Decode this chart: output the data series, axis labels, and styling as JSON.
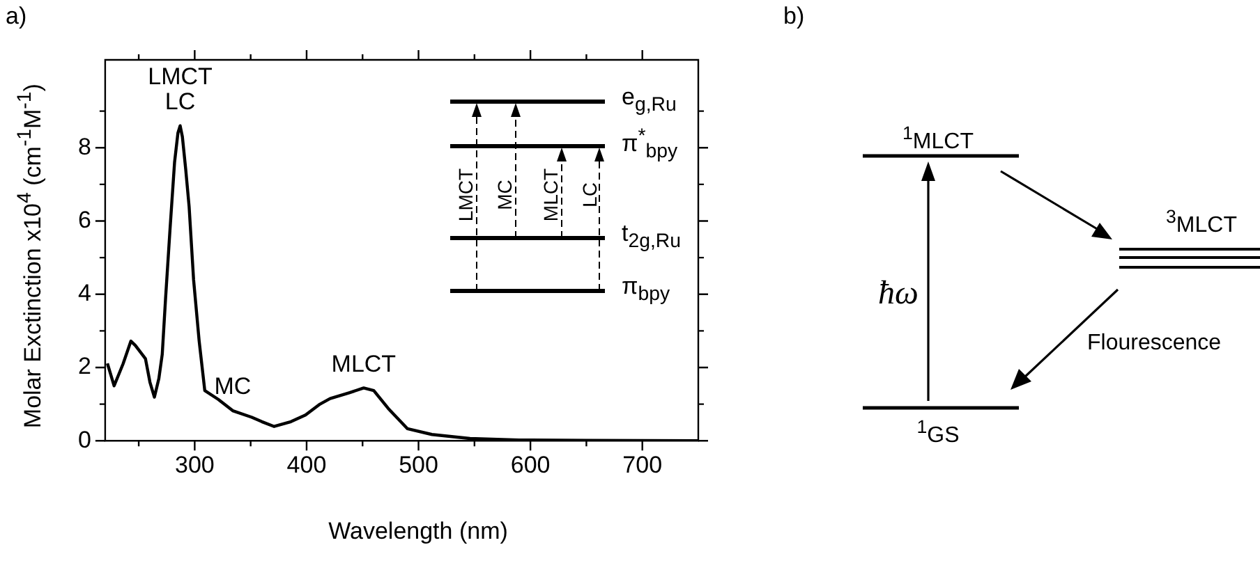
{
  "chart_data": [
    {
      "type": "line",
      "title": "a)",
      "xlabel": "Wavelength (nm)",
      "ylabel": "Molar Exctinction x10$^{4}$ (cm$^{-1}$M$^{-1}$)",
      "series": [
        {
          "color": "#000000",
          "x": [
            222,
            228,
            236,
            243,
            247,
            256,
            260,
            264,
            268,
            271,
            274,
            278,
            282,
            285,
            287,
            289,
            292,
            295,
            299,
            304,
            309,
            321,
            334,
            351,
            360,
            371,
            386,
            399,
            412,
            421,
            438,
            451,
            460,
            473,
            490,
            512,
            546,
            590,
            650,
            750
          ],
          "values": [
            2.11,
            1.5,
            2.1,
            2.72,
            2.6,
            2.24,
            1.6,
            1.19,
            1.7,
            2.36,
            3.9,
            5.8,
            7.6,
            8.4,
            8.6,
            8.3,
            7.4,
            6.4,
            4.4,
            2.72,
            1.37,
            1.13,
            0.82,
            0.64,
            0.52,
            0.39,
            0.52,
            0.7,
            1.0,
            1.15,
            1.31,
            1.44,
            1.37,
            0.88,
            0.33,
            0.17,
            0.06,
            0.02,
            0.01,
            0.0
          ]
        }
      ],
      "xlim": [
        220,
        750
      ],
      "xticks": [
        {
          "value": 250,
          "label": null
        },
        300,
        {
          "value": 350,
          "label": null
        },
        400,
        {
          "value": 450,
          "label": null
        },
        500,
        {
          "value": 550,
          "label": null
        },
        600,
        {
          "value": 650,
          "label": null
        },
        700
      ],
      "ylim": [
        0,
        10.4
      ],
      "yticks": [
        0,
        {
          "value": 1,
          "label": null
        },
        2,
        {
          "value": 3,
          "label": null
        },
        4,
        {
          "value": 5,
          "label": null
        },
        6,
        {
          "value": 7,
          "label": null
        },
        8,
        {
          "value": 9,
          "label": null
        }
      ],
      "annotations": [
        {
          "text": "LMCT",
          "x": 287,
          "y": 8.6
        },
        {
          "text": "LC",
          "x": 287,
          "y": 8.6
        },
        {
          "text": "MC",
          "x": 334,
          "y": 0.82
        },
        {
          "text": "MLCT",
          "x": 451,
          "y": 1.44
        },
        "e$_{g,Ru}$",
        "π$^{*}$$_{bpy}$",
        "t$_{2g,Ru}$",
        "π$_{bpy}$",
        "LMCT",
        "MC",
        "MLCT",
        "LC"
      ]
    },
    {
      "type": "other",
      "title": "b)",
      "annotations": [
        "$^{1}$MLCT",
        "$^{3}$MLCT",
        "$^{1}$GS",
        "ħω",
        "Flourescence"
      ]
    }
  ]
}
